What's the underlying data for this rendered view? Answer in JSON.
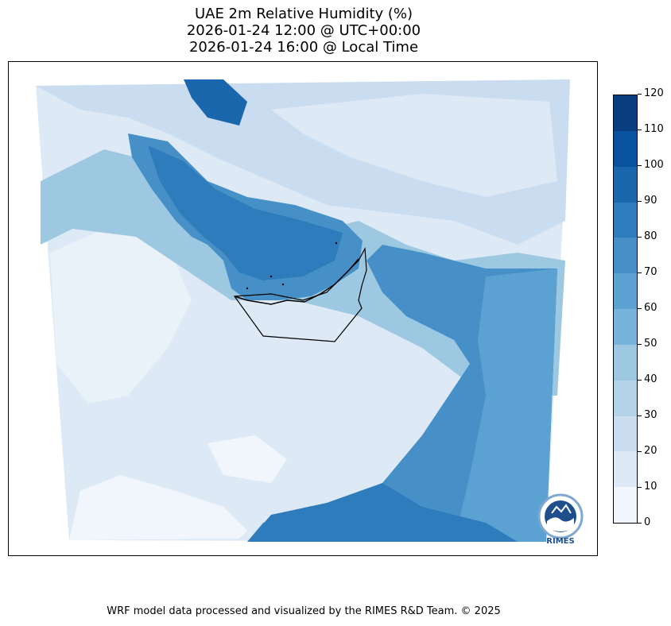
{
  "title": {
    "line1": "UAE 2m Relative Humidity (%)",
    "line2": "2026-01-24 12:00 @ UTC+00:00",
    "line3": "2026-01-24 16:00 @ Local Time"
  },
  "colorbar": {
    "labels": [
      "0",
      "10",
      "20",
      "30",
      "40",
      "50",
      "60",
      "70",
      "80",
      "90",
      "100",
      "110",
      "120"
    ],
    "levels": [
      0,
      10,
      20,
      30,
      40,
      50,
      60,
      70,
      80,
      90,
      100,
      110,
      120
    ],
    "colors": [
      "#f0f6fc",
      "#dee9f6",
      "#cadcef",
      "#b3d3e8",
      "#9cc9e1",
      "#77b3da",
      "#5ba1d1",
      "#4690c7",
      "#2e7cbc",
      "#1a67ae",
      "#09529d",
      "#083d80"
    ]
  },
  "logo": {
    "text": "RIMES"
  },
  "credit": "WRF model data processed and visualized by the RIMES R&D Team. © 2025"
}
